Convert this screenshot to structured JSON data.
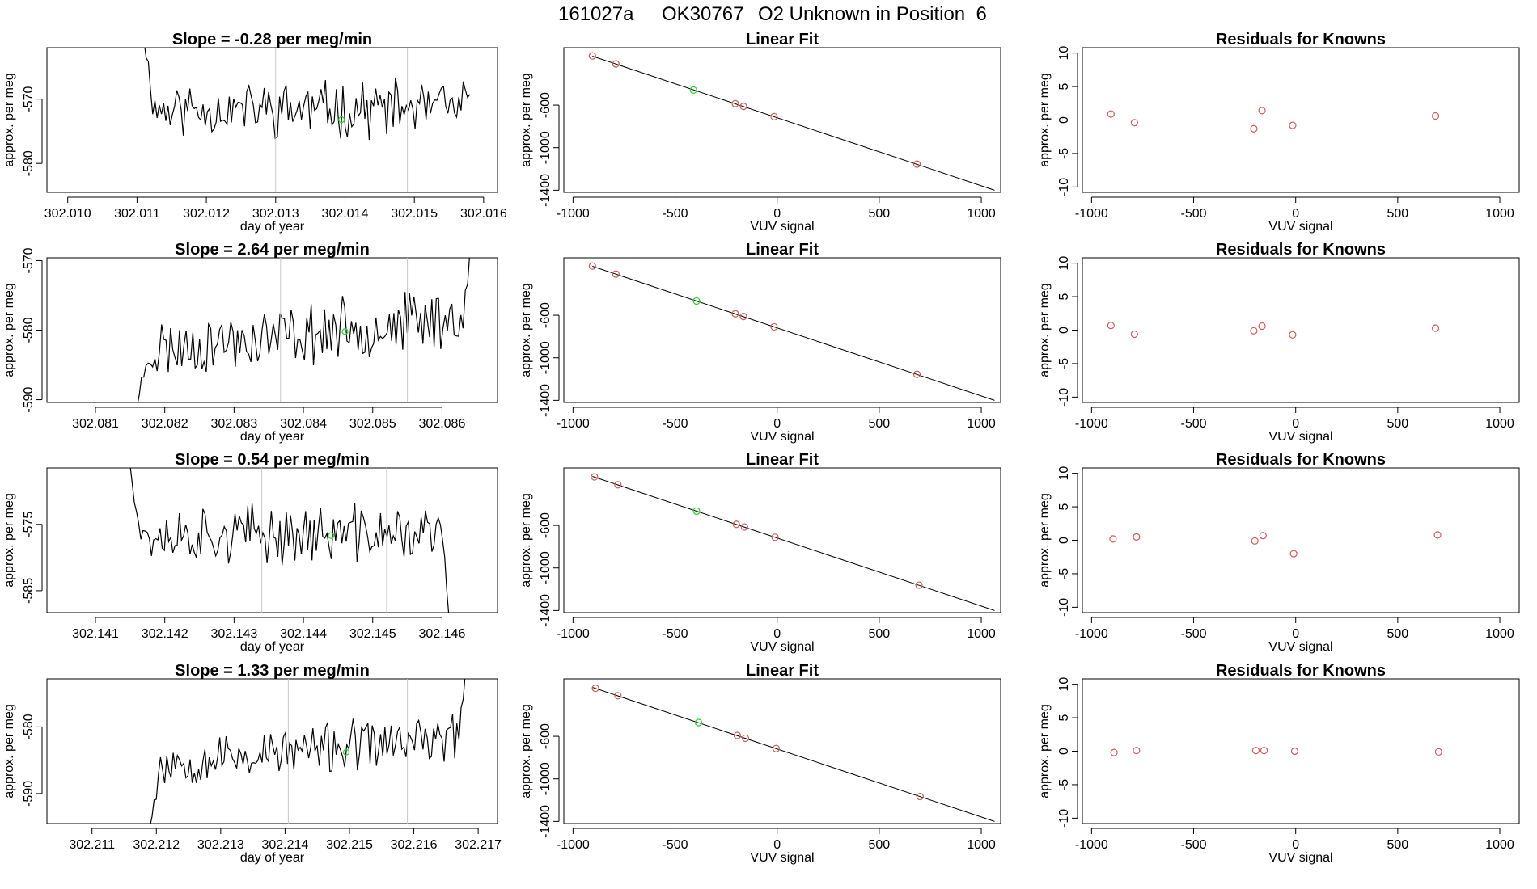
{
  "header": {
    "run_id": "161027a",
    "tank_id": "OK30767",
    "description": "O2 Unknown in Position  6"
  },
  "colors": {
    "known": "#cd5c5c",
    "unknown": "#32cd32",
    "series": "#000000",
    "marker": "#c8c8c8"
  },
  "chart_data": [
    {
      "type": "line",
      "row": 0,
      "title": "Slope =  -0.28  per meg/min",
      "xlabel": "day of year",
      "ylabel": "approx. per meg",
      "xlim": [
        302.0097,
        302.0162
      ],
      "ylim": [
        -584.5,
        -562.0
      ],
      "xticks": [
        "302.010",
        "302.011",
        "302.012",
        "302.013",
        "302.014",
        "302.015",
        "302.016"
      ],
      "yticks": [
        -570,
        -580
      ],
      "markers_x": [
        302.013,
        302.0149
      ],
      "unknown_point": {
        "x": 302.01395,
        "y": -573.2
      },
      "series": {
        "x0": 302.0111,
        "x1": 302.0158,
        "start": -561.0,
        "mean": -571.5,
        "amp": 3.5,
        "n": 150,
        "seed": 11
      }
    },
    {
      "type": "scatter",
      "row": 0,
      "title": "Linear Fit",
      "xlabel": "VUV signal",
      "ylabel": "approx. per meg",
      "xlim": [
        -1045,
        1095
      ],
      "ylim": [
        -1420,
        -60
      ],
      "xticks": [
        -1000,
        -500,
        0,
        500,
        1000
      ],
      "yticks": [
        -600,
        -1000,
        -1400
      ],
      "fit_line": {
        "x": [
          -905,
          1065
        ],
        "y": [
          -140,
          -1400
        ]
      },
      "knowns": [
        {
          "x": -905,
          "y": -138
        },
        {
          "x": -790,
          "y": -212
        },
        {
          "x": -205,
          "y": -586
        },
        {
          "x": -165,
          "y": -612
        },
        {
          "x": -15,
          "y": -708
        },
        {
          "x": 685,
          "y": -1155
        }
      ],
      "unknown": {
        "x": -410,
        "y": -458
      }
    },
    {
      "type": "scatter",
      "row": 0,
      "title": "Residuals for Knowns",
      "xlabel": "VUV signal",
      "ylabel": "approx. per meg",
      "xlim": [
        -1045,
        1095
      ],
      "ylim": [
        -10.8,
        10.8
      ],
      "xticks": [
        -1000,
        -500,
        0,
        500,
        1000
      ],
      "yticks": [
        10,
        5,
        0,
        -5,
        -10
      ],
      "knowns": [
        {
          "x": -905,
          "y": 0.9
        },
        {
          "x": -790,
          "y": -0.4
        },
        {
          "x": -205,
          "y": -1.3
        },
        {
          "x": -165,
          "y": 1.4
        },
        {
          "x": -15,
          "y": -0.8
        },
        {
          "x": 685,
          "y": 0.6
        }
      ]
    },
    {
      "type": "line",
      "row": 1,
      "title": "Slope =  2.64  per meg/min",
      "xlabel": "day of year",
      "ylabel": "approx. per meg",
      "xlim": [
        302.0803,
        302.0868
      ],
      "ylim": [
        -590.4,
        -569.6
      ],
      "xticks": [
        "302.081",
        "302.082",
        "302.083",
        "302.084",
        "302.085",
        "302.086"
      ],
      "yticks": [
        -570,
        -580,
        -590
      ],
      "markers_x": [
        302.08367,
        302.0855
      ],
      "unknown_point": {
        "x": 302.0846,
        "y": -580.2
      },
      "series": {
        "x0": 302.0816,
        "x1": 302.0864,
        "start": -591.0,
        "mean": -580.5,
        "amp": 3.5,
        "trend": 5,
        "end": -569.0,
        "n": 150,
        "seed": 23
      }
    },
    {
      "type": "scatter",
      "row": 1,
      "title": "Linear Fit",
      "xlabel": "VUV signal",
      "ylabel": "approx. per meg",
      "xlim": [
        -1045,
        1095
      ],
      "ylim": [
        -1420,
        -60
      ],
      "xticks": [
        -1000,
        -500,
        0,
        500,
        1000
      ],
      "yticks": [
        -600,
        -1000,
        -1400
      ],
      "fit_line": {
        "x": [
          -905,
          1065
        ],
        "y": [
          -140,
          -1400
        ]
      },
      "knowns": [
        {
          "x": -905,
          "y": -138
        },
        {
          "x": -790,
          "y": -213
        },
        {
          "x": -205,
          "y": -586
        },
        {
          "x": -165,
          "y": -612
        },
        {
          "x": -15,
          "y": -709
        },
        {
          "x": 685,
          "y": -1155
        }
      ],
      "unknown": {
        "x": -395,
        "y": -466
      }
    },
    {
      "type": "scatter",
      "row": 1,
      "title": "Residuals for Knowns",
      "xlabel": "VUV signal",
      "ylabel": "approx. per meg",
      "xlim": [
        -1045,
        1095
      ],
      "ylim": [
        -10.8,
        10.8
      ],
      "xticks": [
        -1000,
        -500,
        0,
        500,
        1000
      ],
      "yticks": [
        10,
        5,
        0,
        -5,
        -10
      ],
      "knowns": [
        {
          "x": -905,
          "y": 0.7
        },
        {
          "x": -790,
          "y": -0.6
        },
        {
          "x": -205,
          "y": -0.1
        },
        {
          "x": -165,
          "y": 0.6
        },
        {
          "x": -15,
          "y": -0.7
        },
        {
          "x": 685,
          "y": 0.3
        }
      ]
    },
    {
      "type": "line",
      "row": 2,
      "title": "Slope =  0.54  per meg/min",
      "xlabel": "day of year",
      "ylabel": "approx. per meg",
      "xlim": [
        302.1403,
        302.1468
      ],
      "ylim": [
        -588.3,
        -566.5
      ],
      "xticks": [
        "302.141",
        "302.142",
        "302.143",
        "302.144",
        "302.145",
        "302.146"
      ],
      "yticks": [
        -575,
        -585
      ],
      "markers_x": [
        302.1434,
        302.1452
      ],
      "unknown_point": {
        "x": 302.1444,
        "y": -576.7
      },
      "series": {
        "x0": 302.1415,
        "x1": 302.1461,
        "start": -566.0,
        "mean": -576.5,
        "amp": 3.5,
        "end": -589.0,
        "n": 150,
        "seed": 37
      }
    },
    {
      "type": "scatter",
      "row": 2,
      "title": "Linear Fit",
      "xlabel": "VUV signal",
      "ylabel": "approx. per meg",
      "xlim": [
        -1045,
        1095
      ],
      "ylim": [
        -1420,
        -60
      ],
      "xticks": [
        -1000,
        -500,
        0,
        500,
        1000
      ],
      "yticks": [
        -600,
        -1000,
        -1400
      ],
      "fit_line": {
        "x": [
          -905,
          1065
        ],
        "y": [
          -140,
          -1400
        ]
      },
      "knowns": [
        {
          "x": -895,
          "y": -144
        },
        {
          "x": -780,
          "y": -218
        },
        {
          "x": -200,
          "y": -590
        },
        {
          "x": -160,
          "y": -615
        },
        {
          "x": -10,
          "y": -712
        },
        {
          "x": 695,
          "y": -1162
        }
      ],
      "unknown": {
        "x": -395,
        "y": -466
      }
    },
    {
      "type": "scatter",
      "row": 2,
      "title": "Residuals for Knowns",
      "xlabel": "VUV signal",
      "ylabel": "approx. per meg",
      "xlim": [
        -1045,
        1095
      ],
      "ylim": [
        -10.8,
        10.8
      ],
      "xticks": [
        -1000,
        -500,
        0,
        500,
        1000
      ],
      "yticks": [
        10,
        5,
        0,
        -5,
        -10
      ],
      "knowns": [
        {
          "x": -895,
          "y": 0.2
        },
        {
          "x": -780,
          "y": 0.5
        },
        {
          "x": -200,
          "y": -0.1
        },
        {
          "x": -160,
          "y": 0.7
        },
        {
          "x": -10,
          "y": -2.0
        },
        {
          "x": 695,
          "y": 0.8
        }
      ]
    },
    {
      "type": "line",
      "row": 3,
      "title": "Slope =  1.33  per meg/min",
      "xlabel": "day of year",
      "ylabel": "approx. per meg",
      "xlim": [
        302.2103,
        302.2173
      ],
      "ylim": [
        -594.5,
        -572.8
      ],
      "xticks": [
        "302.211",
        "302.212",
        "302.213",
        "302.214",
        "302.215",
        "302.216",
        "302.217"
      ],
      "yticks": [
        -580,
        -590
      ],
      "markers_x": [
        302.21405,
        302.2159
      ],
      "unknown_point": {
        "x": 302.21495,
        "y": -583.8
      },
      "series": {
        "x0": 302.2119,
        "x1": 302.2168,
        "start": -595.0,
        "mean": -583.5,
        "amp": 3.0,
        "trend": 4,
        "end": -572.0,
        "n": 150,
        "seed": 53
      }
    },
    {
      "type": "scatter",
      "row": 3,
      "title": "Linear Fit",
      "xlabel": "VUV signal",
      "ylabel": "approx. per meg",
      "xlim": [
        -1045,
        1095
      ],
      "ylim": [
        -1420,
        -60
      ],
      "xticks": [
        -1000,
        -500,
        0,
        500,
        1000
      ],
      "yticks": [
        -600,
        -1000,
        -1400
      ],
      "fit_line": {
        "x": [
          -905,
          1065
        ],
        "y": [
          -140,
          -1400
        ]
      },
      "knowns": [
        {
          "x": -890,
          "y": -148
        },
        {
          "x": -780,
          "y": -218
        },
        {
          "x": -195,
          "y": -592
        },
        {
          "x": -155,
          "y": -618
        },
        {
          "x": -5,
          "y": -715
        },
        {
          "x": 700,
          "y": -1166
        }
      ],
      "unknown": {
        "x": -385,
        "y": -470
      }
    },
    {
      "type": "scatter",
      "row": 3,
      "title": "Residuals for Knowns",
      "xlabel": "VUV signal",
      "ylabel": "approx. per meg",
      "xlim": [
        -1045,
        1095
      ],
      "ylim": [
        -10.8,
        10.8
      ],
      "xticks": [
        -1000,
        -500,
        0,
        500,
        1000
      ],
      "yticks": [
        10,
        5,
        0,
        -5,
        -10
      ],
      "knowns": [
        {
          "x": -890,
          "y": -0.2
        },
        {
          "x": -780,
          "y": 0.1
        },
        {
          "x": -195,
          "y": 0.1
        },
        {
          "x": -155,
          "y": 0.1
        },
        {
          "x": -5,
          "y": 0.0
        },
        {
          "x": 700,
          "y": -0.1
        }
      ]
    }
  ]
}
